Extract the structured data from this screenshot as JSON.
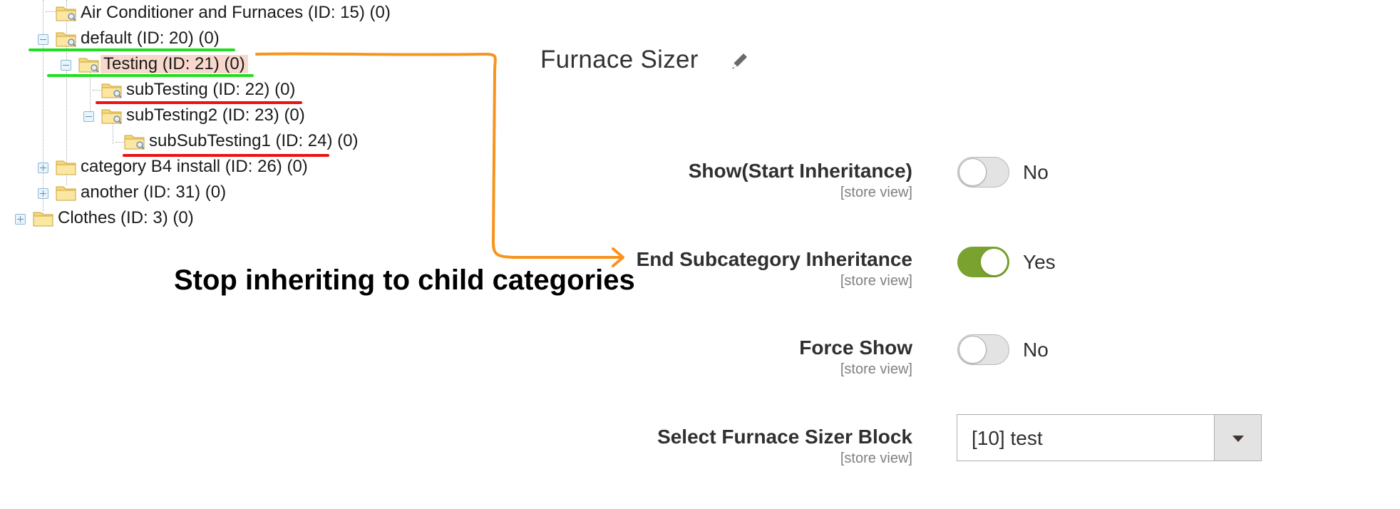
{
  "tree": {
    "items": [
      {
        "label": "Air Conditioner and Furnaces (ID: 15) (0)",
        "toggle": "none",
        "state": "normal"
      },
      {
        "label": "default (ID: 20) (0)",
        "toggle": "minus",
        "state": "normal"
      },
      {
        "label": "Testing (ID: 21) (0)",
        "toggle": "minus",
        "state": "selected"
      },
      {
        "label": "subTesting (ID: 22) (0)",
        "toggle": "none",
        "state": "normal"
      },
      {
        "label": "subTesting2 (ID: 23) (0)",
        "toggle": "minus",
        "state": "normal"
      },
      {
        "label": "subSubTesting1 (ID: 24) (0)",
        "toggle": "none",
        "state": "normal"
      },
      {
        "label": "category B4 install (ID: 26) (0)",
        "toggle": "plus",
        "state": "normal"
      },
      {
        "label": "another (ID: 31) (0)",
        "toggle": "plus",
        "state": "normal"
      },
      {
        "label": "Clothes (ID: 3) (0)",
        "toggle": "plus",
        "state": "normal"
      }
    ]
  },
  "annotation": {
    "text": "Stop inheriting to child categories",
    "arrow_color": "#f7941d",
    "highlight_green": "#22dd22",
    "highlight_red": "#ee1111"
  },
  "panel": {
    "title": "Furnace Sizer",
    "edit_icon": "pencil-icon",
    "fields": [
      {
        "label": "Show(Start Inheritance)",
        "scope": "[store view]",
        "type": "switch",
        "on": false,
        "value_text": "No"
      },
      {
        "label": "End Subcategory Inheritance",
        "scope": "[store view]",
        "type": "switch",
        "on": true,
        "value_text": "Yes"
      },
      {
        "label": "Force Show",
        "scope": "[store view]",
        "type": "switch",
        "on": false,
        "value_text": "No"
      },
      {
        "label": "Select Furnace Sizer Block",
        "scope": "[store view]",
        "type": "select",
        "value_text": "[10] test"
      }
    ]
  },
  "colors": {
    "switch_on": "#79a22e",
    "switch_off": "#e3e3e3",
    "selected_row": "#f8d8cc"
  }
}
